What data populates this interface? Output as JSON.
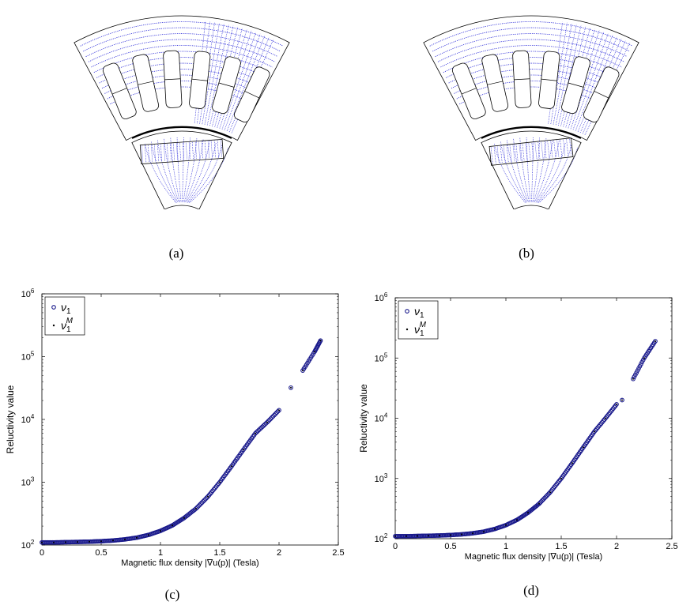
{
  "captions": {
    "a": "(a)",
    "b": "(b)",
    "c": "(c)",
    "d": "(d)"
  },
  "colors": {
    "flux_lines": "#2a2ad8",
    "marker_main": "#1a1a8c",
    "marker_model": "#000000",
    "frame": "#000000"
  },
  "chart_data": [
    {
      "type": "scatter",
      "panel": "c",
      "xlabel": "Magnetic flux density |∇u(p)| (Tesla)",
      "ylabel": "Reluctivity value",
      "xlim": [
        0,
        2.5
      ],
      "ylim": [
        100,
        1000000
      ],
      "y_scale": "log",
      "x_ticks": [
        "0",
        "0.5",
        "1",
        "1.5",
        "2",
        "2.5"
      ],
      "y_ticks": [
        "10^2",
        "10^3",
        "10^4",
        "10^5",
        "10^6"
      ],
      "legend": [
        "ν1",
        "ν1^M"
      ],
      "legend_position": "top-left",
      "series": [
        {
          "name": "ν1",
          "x": [
            0,
            0.1,
            0.2,
            0.3,
            0.4,
            0.5,
            0.6,
            0.7,
            0.8,
            0.9,
            1.0,
            1.1,
            1.2,
            1.3,
            1.4,
            1.5,
            1.6,
            1.7,
            1.8,
            1.9,
            2.0,
            2.1,
            2.2,
            2.3,
            2.35
          ],
          "y": [
            110,
            110,
            111,
            112,
            113,
            115,
            118,
            123,
            131,
            145,
            168,
            205,
            270,
            380,
            590,
            1000,
            1800,
            3300,
            6000,
            9000,
            14000,
            32000,
            60000,
            120000,
            180000
          ]
        },
        {
          "name": "ν1^M",
          "x": [
            0,
            0.1,
            0.2,
            0.3,
            0.4,
            0.5,
            0.6,
            0.7,
            0.8,
            0.9,
            1.0,
            1.1,
            1.2,
            1.3,
            1.4,
            1.5,
            1.6,
            1.7,
            1.8,
            1.9,
            2.0,
            2.1,
            2.2,
            2.3,
            2.35
          ],
          "y": [
            110,
            110,
            111,
            112,
            113,
            115,
            118,
            123,
            131,
            145,
            168,
            205,
            270,
            380,
            590,
            1000,
            1800,
            3300,
            6000,
            9000,
            14000,
            32000,
            60000,
            120000,
            180000
          ]
        }
      ]
    },
    {
      "type": "scatter",
      "panel": "d",
      "xlabel": "Magnetic flux density |∇u(p)| (Tesla)",
      "ylabel": "Reluctivity value",
      "xlim": [
        0,
        2.5
      ],
      "ylim": [
        100,
        1000000
      ],
      "y_scale": "log",
      "x_ticks": [
        "0",
        "0.5",
        "1",
        "1.5",
        "2",
        "2.5"
      ],
      "y_ticks": [
        "10^2",
        "10^3",
        "10^4",
        "10^5",
        "10^6"
      ],
      "legend": [
        "ν1",
        "ν1^M"
      ],
      "legend_position": "top-left",
      "series": [
        {
          "name": "ν1",
          "x": [
            0,
            0.1,
            0.2,
            0.3,
            0.4,
            0.5,
            0.6,
            0.7,
            0.8,
            0.9,
            1.0,
            1.1,
            1.2,
            1.3,
            1.4,
            1.5,
            1.6,
            1.7,
            1.8,
            1.9,
            2.0,
            2.05,
            2.15,
            2.25,
            2.35
          ],
          "y": [
            110,
            110,
            111,
            112,
            113,
            115,
            118,
            123,
            131,
            145,
            168,
            205,
            270,
            380,
            590,
            1000,
            1800,
            3300,
            6000,
            10000,
            17000,
            20000,
            45000,
            100000,
            190000
          ]
        },
        {
          "name": "ν1^M",
          "x": [
            0,
            0.1,
            0.2,
            0.3,
            0.4,
            0.5,
            0.6,
            0.7,
            0.8,
            0.9,
            1.0,
            1.1,
            1.2,
            1.3,
            1.4,
            1.5,
            1.6,
            1.7,
            1.8,
            1.9,
            2.0,
            2.05,
            2.15,
            2.25,
            2.35
          ],
          "y": [
            110,
            110,
            111,
            112,
            113,
            115,
            118,
            123,
            131,
            145,
            168,
            205,
            270,
            380,
            590,
            1000,
            1800,
            3300,
            6000,
            10000,
            17000,
            20000,
            45000,
            100000,
            190000
          ]
        }
      ]
    }
  ]
}
